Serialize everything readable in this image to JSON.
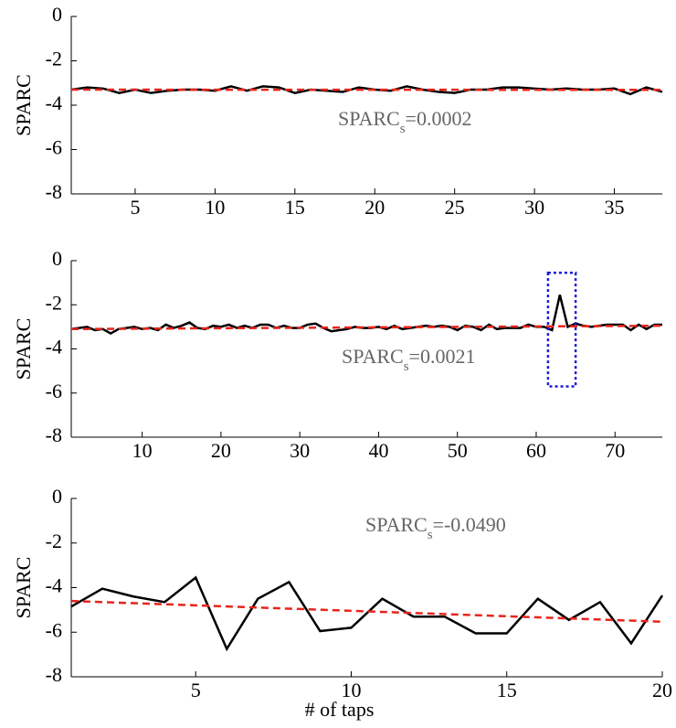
{
  "chart_data": [
    {
      "type": "line",
      "ylabel": "SPARC",
      "x": [
        1,
        2,
        3,
        4,
        5,
        6,
        7,
        8,
        9,
        10,
        11,
        12,
        13,
        14,
        15,
        16,
        17,
        18,
        19,
        20,
        21,
        22,
        23,
        24,
        25,
        26,
        27,
        28,
        29,
        30,
        31,
        32,
        33,
        34,
        35,
        36,
        37,
        38
      ],
      "values": [
        -3.3,
        -3.2,
        -3.25,
        -3.45,
        -3.3,
        -3.45,
        -3.35,
        -3.3,
        -3.3,
        -3.35,
        -3.15,
        -3.35,
        -3.15,
        -3.2,
        -3.45,
        -3.3,
        -3.35,
        -3.4,
        -3.2,
        -3.3,
        -3.35,
        -3.15,
        -3.3,
        -3.4,
        -3.45,
        -3.3,
        -3.3,
        -3.2,
        -3.2,
        -3.25,
        -3.3,
        -3.25,
        -3.3,
        -3.3,
        -3.25,
        -3.5,
        -3.2,
        -3.4
      ],
      "color": "#000000",
      "trend": {
        "x": [
          1,
          38
        ],
        "values": [
          -3.3,
          -3.31
        ],
        "color": "#e8251c"
      },
      "annotation": {
        "base": "SPARC",
        "subscript": "s",
        "value": "=0.0002"
      },
      "xlim": [
        1,
        38
      ],
      "xticks": [
        5,
        10,
        15,
        20,
        25,
        30,
        35
      ],
      "ylim": [
        -8,
        0
      ],
      "yticks": [
        0,
        -2,
        -4,
        -6,
        -8
      ]
    },
    {
      "type": "line",
      "ylabel": "SPARC",
      "x": [
        1,
        2,
        3,
        4,
        5,
        6,
        7,
        8,
        9,
        10,
        11,
        12,
        13,
        14,
        15,
        16,
        17,
        18,
        19,
        20,
        21,
        22,
        23,
        24,
        25,
        26,
        27,
        28,
        29,
        30,
        31,
        32,
        33,
        34,
        35,
        36,
        37,
        38,
        39,
        40,
        41,
        42,
        43,
        44,
        45,
        46,
        47,
        48,
        49,
        50,
        51,
        52,
        53,
        54,
        55,
        56,
        57,
        58,
        59,
        60,
        61,
        62,
        63,
        64,
        65,
        66,
        67,
        68,
        69,
        70,
        71,
        72,
        73,
        74,
        75,
        76
      ],
      "values": [
        -3.1,
        -3.05,
        -3.0,
        -3.15,
        -3.1,
        -3.3,
        -3.1,
        -3.05,
        -3.0,
        -3.1,
        -3.05,
        -3.15,
        -2.9,
        -3.05,
        -2.95,
        -2.8,
        -3.05,
        -3.1,
        -2.95,
        -3.0,
        -2.9,
        -3.05,
        -2.95,
        -3.05,
        -2.9,
        -2.9,
        -3.05,
        -2.95,
        -3.05,
        -3.05,
        -2.9,
        -2.85,
        -3.05,
        -3.2,
        -3.15,
        -3.1,
        -3.0,
        -3.05,
        -3.05,
        -3.0,
        -3.1,
        -2.95,
        -3.1,
        -3.05,
        -3.0,
        -2.95,
        -3.0,
        -2.95,
        -3.0,
        -3.15,
        -2.95,
        -3.0,
        -3.15,
        -2.9,
        -3.1,
        -3.05,
        -3.05,
        -3.05,
        -2.9,
        -3.0,
        -3.0,
        -3.15,
        -1.55,
        -3.0,
        -2.85,
        -2.95,
        -3.0,
        -2.95,
        -2.9,
        -2.9,
        -2.9,
        -3.15,
        -2.9,
        -3.1,
        -2.9,
        -2.9
      ],
      "color": "#000000",
      "trend": {
        "x": [
          1,
          76
        ],
        "values": [
          -3.1,
          -2.95
        ],
        "color": "#e8251c"
      },
      "annotation": {
        "base": "SPARC",
        "subscript": "s",
        "value": "=0.0021"
      },
      "highlight": {
        "xlim": [
          61.5,
          65
        ],
        "ylim": [
          -5.7,
          -0.55
        ],
        "color": "#1a1adb"
      },
      "xlim": [
        1,
        76
      ],
      "xticks": [
        10,
        20,
        30,
        40,
        50,
        60,
        70
      ],
      "ylim": [
        -8,
        0
      ],
      "yticks": [
        0,
        -2,
        -4,
        -6,
        -8
      ]
    },
    {
      "type": "line",
      "ylabel": "SPARC",
      "xlabel": "# of taps",
      "x": [
        1,
        2,
        3,
        4,
        5,
        6,
        7,
        8,
        9,
        10,
        11,
        12,
        13,
        14,
        15,
        16,
        17,
        18,
        19,
        20
      ],
      "values": [
        -4.85,
        -4.05,
        -4.4,
        -4.65,
        -3.55,
        -6.75,
        -4.5,
        -3.75,
        -5.95,
        -5.8,
        -4.5,
        -5.3,
        -5.3,
        -6.05,
        -6.05,
        -4.5,
        -5.45,
        -4.65,
        -6.5,
        -4.35
      ],
      "color": "#000000",
      "trend": {
        "x": [
          1,
          20
        ],
        "values": [
          -4.6,
          -5.53
        ],
        "color": "#e8251c"
      },
      "annotation": {
        "base": "SPARC",
        "subscript": "s",
        "value": "=-0.0490"
      },
      "xlim": [
        1,
        20
      ],
      "xticks": [
        5,
        10,
        15,
        20
      ],
      "ylim": [
        -8,
        0
      ],
      "yticks": [
        0,
        -2,
        -4,
        -6,
        -8
      ]
    }
  ]
}
